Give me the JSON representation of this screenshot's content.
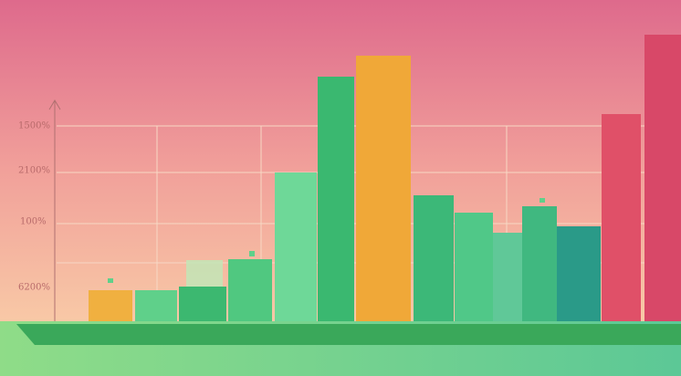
{
  "illustration": {
    "axis_labels": [
      "1500%",
      "2100%",
      "100%",
      "6200%"
    ]
  }
}
